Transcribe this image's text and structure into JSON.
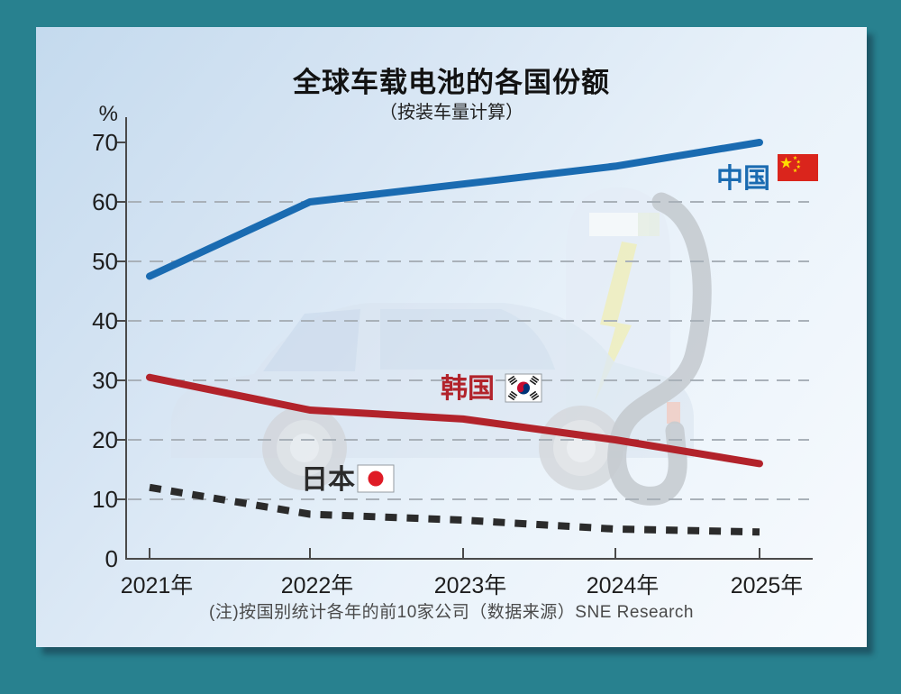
{
  "card": {
    "title": "全球车载电池的各国份额",
    "subtitle": "（按装车量计算）",
    "footnote": "(注)按国别统计各年的前10家公司（数据来源）SNE Research"
  },
  "chart_data": {
    "type": "line",
    "title": "全球车载电池的各国份额",
    "subtitle": "（按装车量计算）",
    "x_categories": [
      "2021年",
      "2022年",
      "2023年",
      "2024年",
      "2025年"
    ],
    "ylabel": "%",
    "ylim": [
      0,
      70
    ],
    "yticks": [
      0,
      10,
      20,
      30,
      40,
      50,
      60,
      70
    ],
    "grid": {
      "horizontal_dashed_at": [
        10,
        20,
        30,
        40,
        50,
        60
      ]
    },
    "legend_position": "labels-next-to-lines",
    "series": [
      {
        "key": "china",
        "name": "中国",
        "flag_icon": "china-flag",
        "color": "#1A6BB1",
        "line_style": "solid",
        "values": [
          47.5,
          60,
          63,
          66,
          70
        ]
      },
      {
        "key": "south-korea",
        "name": "韩国",
        "flag_icon": "south-korea-flag",
        "color": "#B2232B",
        "line_style": "solid",
        "values": [
          30.5,
          25,
          23.5,
          20,
          16
        ]
      },
      {
        "key": "japan",
        "name": "日本",
        "flag_icon": "japan-flag",
        "color": "#2B2B2B",
        "line_style": "dashed",
        "values": [
          12,
          7.5,
          6.5,
          5,
          4.5
        ]
      }
    ],
    "source_note": "(注)按国别统计各年的前10家公司（数据来源）SNE Research"
  },
  "watermark_icon": "ev-car-with-charging-station",
  "colors": {
    "page_bg": "#28818F",
    "card_bg_top": "#C4DAEE",
    "card_bg_bottom": "#F8FBFE",
    "axis": "#4A4A4A",
    "gridline": "#A9B1B9",
    "tick_label": "#1E1E1E",
    "china_line": "#1A6BB1",
    "korea_line": "#B2232B",
    "japan_line": "#2B2B2B",
    "china_flag_red": "#DA251C",
    "china_flag_yellow": "#FFDE00",
    "korea_flag_red": "#C60C30",
    "korea_flag_blue": "#003478",
    "japan_flag_red": "#DF1B26"
  }
}
